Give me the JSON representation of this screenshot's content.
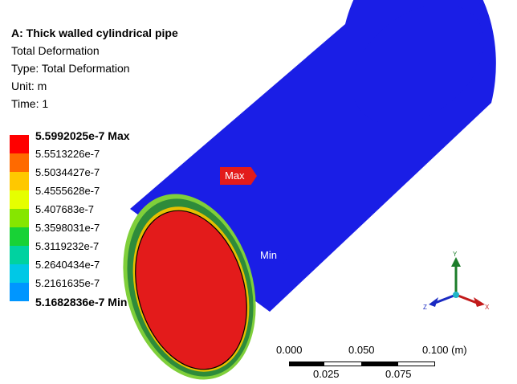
{
  "info": {
    "title": "A: Thick walled cylindrical pipe",
    "line1": "Total Deformation",
    "line2": "Type: Total Deformation",
    "line3": "Unit: m",
    "line4": "Time: 1"
  },
  "legend": {
    "levels": [
      {
        "label": "5.5992025e-7 Max",
        "color": "#ff0000"
      },
      {
        "label": "5.5513226e-7",
        "color": "#ff6a00"
      },
      {
        "label": "5.5034427e-7",
        "color": "#ffc800"
      },
      {
        "label": "5.4555628e-7",
        "color": "#e6ff00"
      },
      {
        "label": "5.407683e-7",
        "color": "#86e600"
      },
      {
        "label": "5.3598031e-7",
        "color": "#18d236"
      },
      {
        "label": "5.3119232e-7",
        "color": "#00d2a0"
      },
      {
        "label": "5.2640434e-7",
        "color": "#00c8e6"
      },
      {
        "label": "5.2161635e-7",
        "color": "#0096ff"
      },
      {
        "label": "5.1682836e-7 Min",
        "color": "#0028ff"
      }
    ]
  },
  "probes": {
    "max_label": "Max",
    "min_label": "Min"
  },
  "scale_bar": {
    "top_labels": [
      "0.000",
      "0.050",
      "0.100 (m)"
    ],
    "bottom_labels": [
      "0.025",
      "0.075"
    ]
  },
  "triad": {
    "x_label": "X",
    "y_label": "Y",
    "z_label": "Z"
  },
  "colors": {
    "outer_surface": "#1a1ee6",
    "inner_surface": "#e31b1b",
    "wall_ring": "#2e8b3a"
  }
}
